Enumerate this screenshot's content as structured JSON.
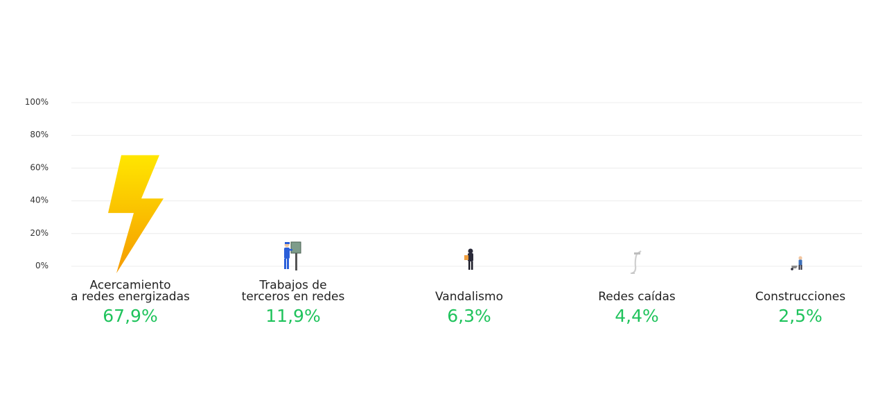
{
  "chart_data": {
    "type": "bar",
    "title": "",
    "xlabel": "",
    "ylabel": "",
    "ylim": [
      0,
      100
    ],
    "yticks": [
      0,
      20,
      40,
      60,
      80,
      100
    ],
    "ytick_labels": [
      "0%",
      "20%",
      "40%",
      "60%",
      "80%",
      "100%"
    ],
    "grid": true,
    "legend": "none",
    "categories": [
      [
        "Acercamiento",
        "a redes energizadas"
      ],
      [
        "Trabajos de",
        "terceros en redes"
      ],
      [
        "Vandalismo"
      ],
      [
        "Redes caídas"
      ],
      [
        "Construcciones"
      ]
    ],
    "values": [
      67.9,
      11.9,
      6.3,
      4.4,
      2.5
    ],
    "value_labels": [
      "67,9%",
      "11,9%",
      "6,3%",
      "4,4%",
      "2,5%"
    ],
    "marks": [
      "lightning-bolt-icon",
      "worker-icon",
      "vandal-icon",
      "fallen-pole-icon",
      "construction-worker-icon"
    ],
    "colors": {
      "value_text": "#1fc35c",
      "grid": "#ececec",
      "bolt_top": "#ffe600",
      "bolt_bottom": "#f59a00",
      "worker": "#2b5fd9",
      "dark": "#2a2a3a"
    }
  }
}
